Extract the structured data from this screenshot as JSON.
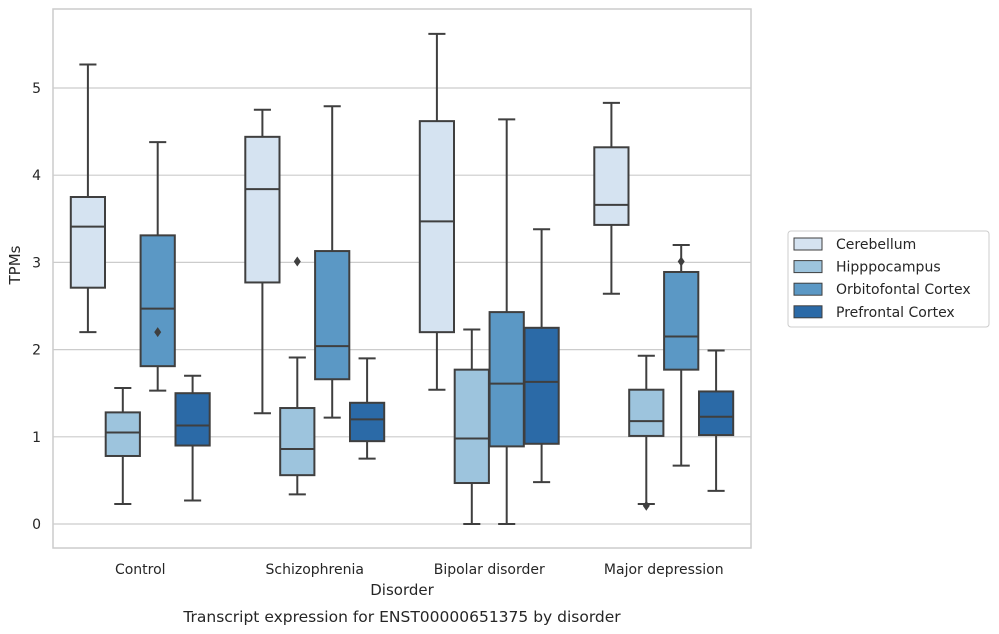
{
  "chart_data": {
    "type": "boxplot",
    "caption": "Transcript expression for ENST00000651375 by disorder",
    "xlabel": "Disorder",
    "ylabel": "TPMs",
    "ylim": [
      -0.28,
      5.98
    ],
    "yticks": [
      0,
      1,
      2,
      3,
      4,
      5
    ],
    "grid": true,
    "legend_position": "right",
    "categories": [
      "Control",
      "Schizophrenia",
      "Bipolar disorder",
      "Major depression"
    ],
    "series": [
      {
        "name": "Cerebellum",
        "color": "#d5e3f1",
        "boxes": [
          {
            "whislo": 2.2,
            "q1": 2.71,
            "med": 3.41,
            "q3": 3.75,
            "whishi": 5.27,
            "fliers": []
          },
          {
            "whislo": 1.27,
            "q1": 2.77,
            "med": 3.84,
            "q3": 4.44,
            "whishi": 4.75,
            "fliers": []
          },
          {
            "whislo": 1.54,
            "q1": 2.2,
            "med": 3.47,
            "q3": 4.62,
            "whishi": 5.62,
            "fliers": []
          },
          {
            "whislo": 2.64,
            "q1": 3.43,
            "med": 3.66,
            "q3": 4.32,
            "whishi": 4.83,
            "fliers": []
          }
        ]
      },
      {
        "name": "Hipppocampus",
        "color": "#9dc4dd",
        "boxes": [
          {
            "whislo": 0.23,
            "q1": 0.78,
            "med": 1.05,
            "q3": 1.28,
            "whishi": 1.56,
            "fliers": []
          },
          {
            "whislo": 0.34,
            "q1": 0.56,
            "med": 0.86,
            "q3": 1.33,
            "whishi": 1.91,
            "fliers": [
              3.01
            ]
          },
          {
            "whislo": 0.0,
            "q1": 0.47,
            "med": 0.98,
            "q3": 1.77,
            "whishi": 2.23,
            "fliers": []
          },
          {
            "whislo": 0.23,
            "q1": 1.01,
            "med": 1.18,
            "q3": 1.54,
            "whishi": 1.93,
            "fliers": [
              0.21
            ]
          }
        ]
      },
      {
        "name": "Orbitofontal Cortex",
        "color": "#5b98c5",
        "boxes": [
          {
            "whislo": 1.53,
            "q1": 1.81,
            "med": 2.47,
            "q3": 3.31,
            "whishi": 4.38,
            "fliers": [
              2.2
            ]
          },
          {
            "whislo": 1.22,
            "q1": 1.66,
            "med": 2.04,
            "q3": 3.13,
            "whishi": 4.79,
            "fliers": []
          },
          {
            "whislo": 0.0,
            "q1": 0.89,
            "med": 1.61,
            "q3": 2.43,
            "whishi": 4.64,
            "fliers": []
          },
          {
            "whislo": 0.67,
            "q1": 1.77,
            "med": 2.15,
            "q3": 2.89,
            "whishi": 3.2,
            "fliers": [
              3.01
            ]
          }
        ]
      },
      {
        "name": "Prefrontal Cortex",
        "color": "#2b6aa7",
        "boxes": [
          {
            "whislo": 0.27,
            "q1": 0.9,
            "med": 1.13,
            "q3": 1.5,
            "whishi": 1.7,
            "fliers": []
          },
          {
            "whislo": 0.75,
            "q1": 0.95,
            "med": 1.2,
            "q3": 1.39,
            "whishi": 1.9,
            "fliers": []
          },
          {
            "whislo": 0.48,
            "q1": 0.92,
            "med": 1.63,
            "q3": 2.25,
            "whishi": 3.38,
            "fliers": []
          },
          {
            "whislo": 0.38,
            "q1": 1.02,
            "med": 1.23,
            "q3": 1.52,
            "whishi": 1.99,
            "fliers": []
          }
        ]
      }
    ]
  },
  "colors": {
    "background": "#ffffff",
    "grid": "#cccccc",
    "frame": "#cccccc",
    "box_edge": "#3f3f3f",
    "text": "#262626"
  }
}
